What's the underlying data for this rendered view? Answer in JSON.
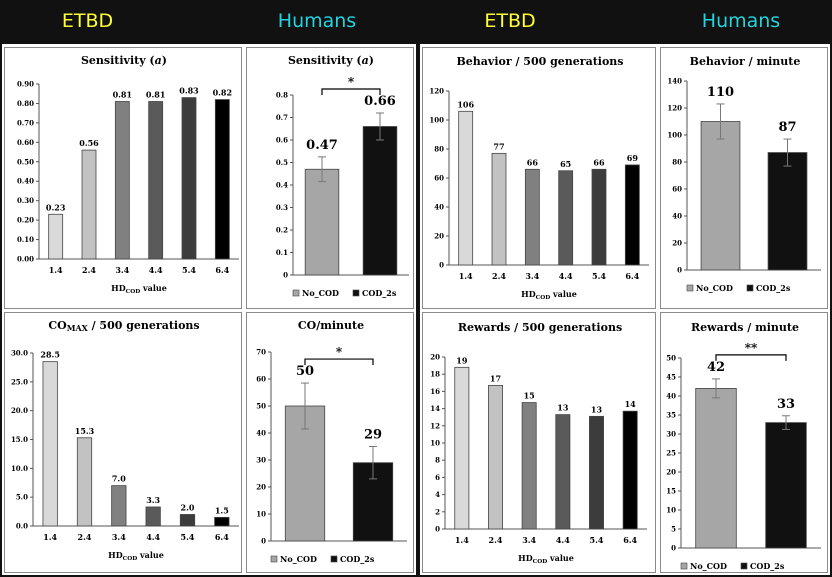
{
  "headers": {
    "h1": "ETBD",
    "h2": "Humans",
    "h3": "ETBD",
    "h4": "Humans",
    "etbd_color": "#ffff33",
    "human_color": "#22d4dd"
  },
  "chart_data": [
    {
      "id": "sens_etbd",
      "type": "bar",
      "title": "Sensitivity (a)",
      "xlabel_main": "HD",
      "xlabel_sub": "COD",
      "xlabel_tail": " value",
      "ylabel": "",
      "categories": [
        "1.4",
        "2.4",
        "3.4",
        "4.4",
        "5.4",
        "6.4"
      ],
      "values": [
        0.23,
        0.56,
        0.81,
        0.81,
        0.83,
        0.82
      ],
      "labels": [
        "0.23",
        "0.56",
        "0.81",
        "0.81",
        "0.83",
        "0.82"
      ],
      "colors": [
        "#d9d9d9",
        "#c2c2c2",
        "#808080",
        "#5a5a5a",
        "#3c3c3c",
        "#000000"
      ],
      "ylim": [
        0,
        0.9
      ],
      "yticks": [
        0,
        0.1,
        0.2,
        0.3,
        0.4,
        0.5,
        0.6,
        0.7,
        0.8,
        0.9
      ],
      "yticklabels": [
        "0.00",
        "0.10",
        "0.20",
        "0.30",
        "0.40",
        "0.50",
        "0.60",
        "0.70",
        "0.80",
        "0.90"
      ]
    },
    {
      "id": "sens_hum",
      "type": "bar",
      "title": "Sensitivity (a)",
      "categories": [
        "No_COD",
        "COD_2s"
      ],
      "values": [
        0.47,
        0.66
      ],
      "labels": [
        "0.47",
        "0.66"
      ],
      "errors": [
        0.055,
        0.06
      ],
      "colors": [
        "#a6a6a6",
        "#111111"
      ],
      "ylim": [
        0,
        0.8
      ],
      "yticks": [
        0,
        0.1,
        0.2,
        0.3,
        0.4,
        0.5,
        0.6,
        0.7,
        0.8
      ],
      "yticklabels": [
        "0",
        "0.1",
        "0.2",
        "0.3",
        "0.4",
        "0.5",
        "0.6",
        "0.7",
        "0.8"
      ],
      "significance": "*",
      "legend": [
        "No_COD",
        "COD_2s"
      ]
    },
    {
      "id": "beh_etbd",
      "type": "bar",
      "title": "Behavior / 500 generations",
      "xlabel_main": "HD",
      "xlabel_sub": "COD",
      "xlabel_tail": " value",
      "categories": [
        "1.4",
        "2.4",
        "3.4",
        "4.4",
        "5.4",
        "6.4"
      ],
      "values": [
        106,
        77,
        66,
        65,
        66,
        69
      ],
      "labels": [
        "106",
        "77",
        "66",
        "65",
        "66",
        "69"
      ],
      "colors": [
        "#d9d9d9",
        "#c2c2c2",
        "#808080",
        "#5a5a5a",
        "#3c3c3c",
        "#000000"
      ],
      "ylim": [
        0,
        120
      ],
      "yticks": [
        0,
        20,
        40,
        60,
        80,
        100,
        120
      ],
      "yticklabels": [
        "0",
        "20",
        "40",
        "60",
        "80",
        "100",
        "120"
      ]
    },
    {
      "id": "beh_hum",
      "type": "bar",
      "title": "Behavior / minute",
      "categories": [
        "No_COD",
        "COD_2s"
      ],
      "values": [
        110,
        87
      ],
      "labels": [
        "110",
        "87"
      ],
      "errors": [
        13,
        10
      ],
      "colors": [
        "#a6a6a6",
        "#111111"
      ],
      "ylim": [
        0,
        140
      ],
      "yticks": [
        0,
        20,
        40,
        60,
        80,
        100,
        120,
        140
      ],
      "yticklabels": [
        "0",
        "20",
        "40",
        "60",
        "80",
        "100",
        "120",
        "140"
      ],
      "significance": "",
      "legend": [
        "No_COD",
        "COD_2s"
      ]
    },
    {
      "id": "co_etbd",
      "type": "bar",
      "title_main": "CO",
      "title_sub": "MAX",
      "title_tail": " / 500 generations",
      "xlabel_main": "HD",
      "xlabel_sub": "COD",
      "xlabel_tail": " value",
      "categories": [
        "1.4",
        "2.4",
        "3.4",
        "4.4",
        "5.4",
        "6.4"
      ],
      "values": [
        28.5,
        15.3,
        7.0,
        3.3,
        2.0,
        1.5
      ],
      "labels": [
        "28.5",
        "15.3",
        "7.0",
        "3.3",
        "2.0",
        "1.5"
      ],
      "colors": [
        "#d9d9d9",
        "#c2c2c2",
        "#808080",
        "#5a5a5a",
        "#3c3c3c",
        "#000000"
      ],
      "ylim": [
        0,
        30
      ],
      "yticks": [
        0,
        5,
        10,
        15,
        20,
        25,
        30
      ],
      "yticklabels": [
        "0.0",
        "5.0",
        "10.0",
        "15.0",
        "20.0",
        "25.0",
        "30.0"
      ]
    },
    {
      "id": "co_hum",
      "type": "bar",
      "title": "CO/minute",
      "categories": [
        "No_COD",
        "COD_2s"
      ],
      "values": [
        50,
        29
      ],
      "labels": [
        "50",
        "29"
      ],
      "errors": [
        8.5,
        6
      ],
      "colors": [
        "#a6a6a6",
        "#111111"
      ],
      "ylim": [
        0,
        70
      ],
      "yticks": [
        0,
        10,
        20,
        30,
        40,
        50,
        60,
        70
      ],
      "yticklabels": [
        "0",
        "10",
        "20",
        "30",
        "40",
        "50",
        "60",
        "70"
      ],
      "significance": "*",
      "legend": [
        "No_COD",
        "COD_2s"
      ]
    },
    {
      "id": "rew_etbd",
      "type": "bar",
      "title": "Rewards / 500 generations",
      "xlabel_main": "HD",
      "xlabel_sub": "COD",
      "xlabel_tail": " value",
      "categories": [
        "1.4",
        "2.4",
        "3.4",
        "4.4",
        "5.4",
        "6.4"
      ],
      "values": [
        19,
        17,
        15,
        13,
        13,
        14
      ],
      "labels": [
        "19",
        "17",
        "15",
        "13",
        "13",
        "14"
      ],
      "colors": [
        "#d9d9d9",
        "#c2c2c2",
        "#808080",
        "#5a5a5a",
        "#3c3c3c",
        "#000000"
      ],
      "heights": [
        18.8,
        16.7,
        14.7,
        13.3,
        13.1,
        13.7
      ],
      "ylim": [
        0,
        20
      ],
      "yticks": [
        0,
        2,
        4,
        6,
        8,
        10,
        12,
        14,
        16,
        18,
        20
      ],
      "yticklabels": [
        "0",
        "2",
        "4",
        "6",
        "8",
        "10",
        "12",
        "14",
        "16",
        "18",
        "20"
      ]
    },
    {
      "id": "rew_hum",
      "type": "bar",
      "title": "Rewards / minute",
      "categories": [
        "No_COD",
        "COD_2s"
      ],
      "values": [
        42,
        33
      ],
      "labels": [
        "42",
        "33"
      ],
      "errors": [
        2.5,
        1.8
      ],
      "colors": [
        "#a6a6a6",
        "#111111"
      ],
      "ylim": [
        0,
        50
      ],
      "yticks": [
        0,
        5,
        10,
        15,
        20,
        25,
        30,
        35,
        40,
        45,
        50
      ],
      "yticklabels": [
        "0",
        "5",
        "10",
        "15",
        "20",
        "25",
        "30",
        "35",
        "40",
        "45",
        "50"
      ],
      "significance": "**",
      "legend": [
        "No_COD",
        "COD_2s"
      ]
    }
  ]
}
